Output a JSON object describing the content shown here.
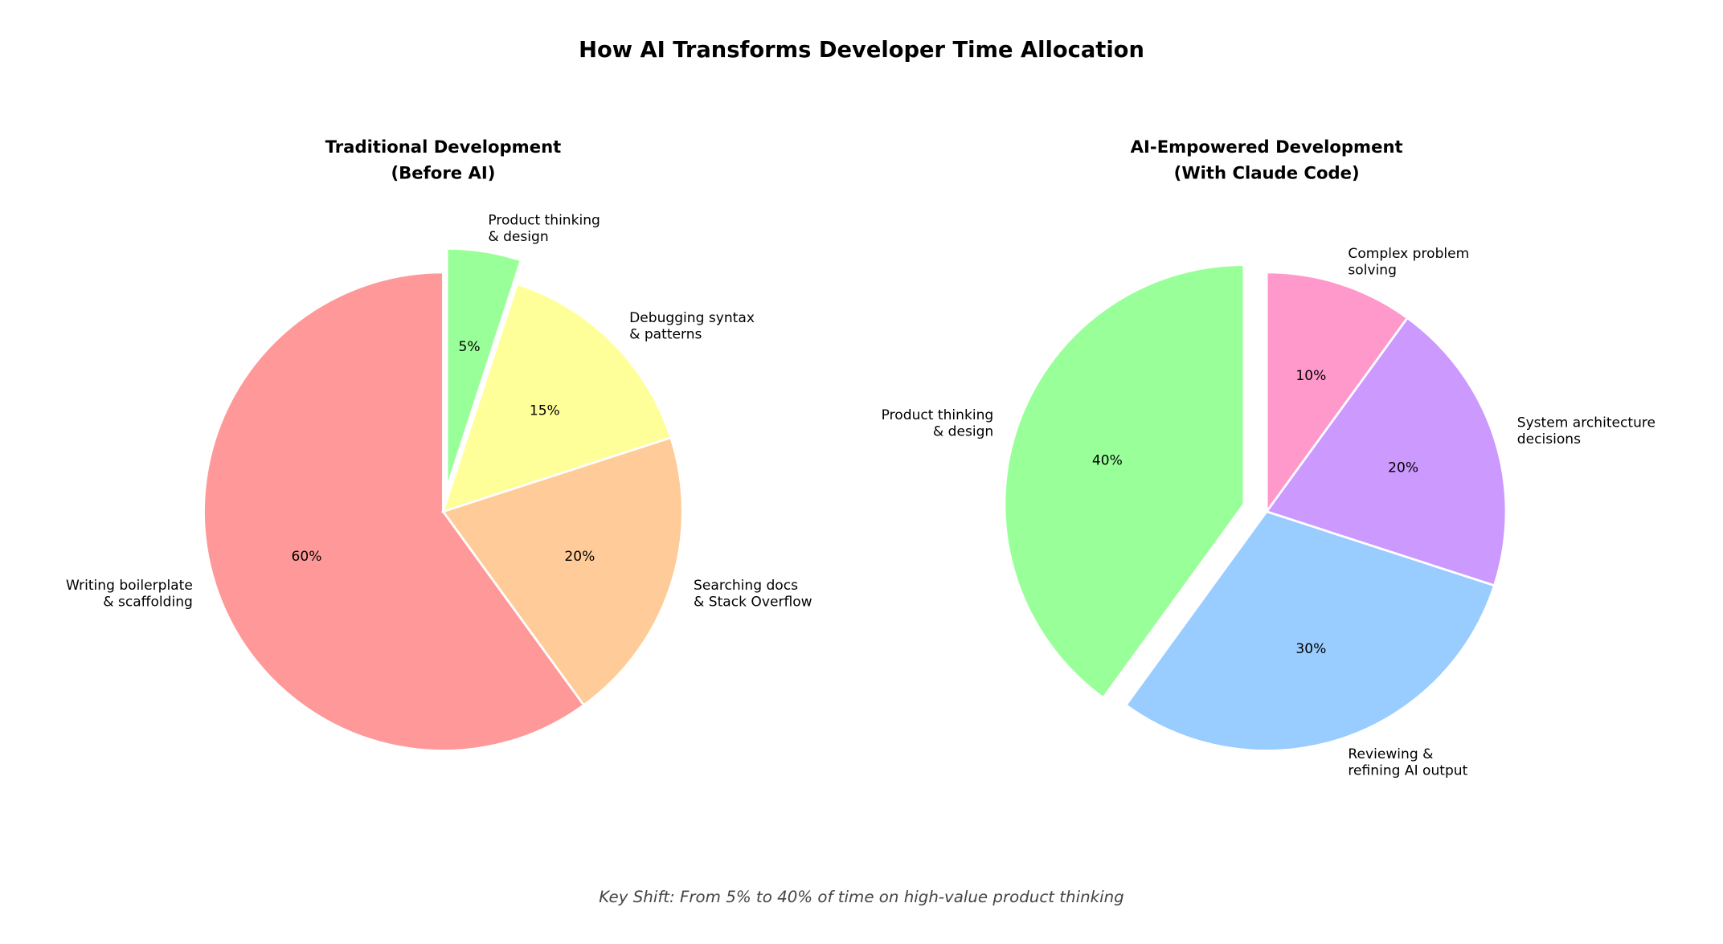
{
  "title": "How AI Transforms Developer Time Allocation",
  "footer": "Key Shift: From 5% to 40% of time on high-value product thinking",
  "chart_data": [
    {
      "type": "pie",
      "title": [
        "Traditional Development",
        "(Before AI)"
      ],
      "start_angle": 90,
      "direction": "counterclockwise",
      "slices": [
        {
          "label": [
            "Writing boilerplate",
            "& scaffolding"
          ],
          "value": 60,
          "pct_label": "60%",
          "color": "#ff9999",
          "exploded": false
        },
        {
          "label": [
            "Searching docs",
            "& Stack Overflow"
          ],
          "value": 20,
          "pct_label": "20%",
          "color": "#ffcc99",
          "exploded": false
        },
        {
          "label": [
            "Debugging syntax",
            "& patterns"
          ],
          "value": 15,
          "pct_label": "15%",
          "color": "#ffff99",
          "exploded": false
        },
        {
          "label": [
            "Product thinking",
            "& design"
          ],
          "value": 5,
          "pct_label": "5%",
          "color": "#99ff99",
          "exploded": true
        }
      ]
    },
    {
      "type": "pie",
      "title": [
        "AI-Empowered Development",
        "(With Claude Code)"
      ],
      "start_angle": 90,
      "direction": "counterclockwise",
      "slices": [
        {
          "label": [
            "Product thinking",
            "& design"
          ],
          "value": 40,
          "pct_label": "40%",
          "color": "#99ff99",
          "exploded": true
        },
        {
          "label": [
            "Reviewing &",
            "refining AI output"
          ],
          "value": 30,
          "pct_label": "30%",
          "color": "#99ccff",
          "exploded": false
        },
        {
          "label": [
            "System architecture",
            "decisions"
          ],
          "value": 20,
          "pct_label": "20%",
          "color": "#cc99ff",
          "exploded": false
        },
        {
          "label": [
            "Complex problem",
            "solving"
          ],
          "value": 10,
          "pct_label": "10%",
          "color": "#ff99cc",
          "exploded": false
        }
      ]
    }
  ]
}
